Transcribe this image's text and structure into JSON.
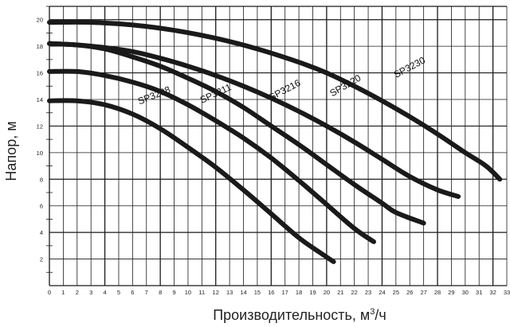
{
  "chart_data": {
    "type": "line",
    "title": "",
    "xlabel_main": "Производительность, м",
    "xlabel_sup": "3",
    "xlabel_tail": "/ч",
    "ylabel": "Напор, м",
    "xlim": [
      0,
      33
    ],
    "ylim": [
      0,
      21
    ],
    "x_ticks": [
      0,
      1,
      2,
      3,
      4,
      5,
      6,
      7,
      8,
      9,
      10,
      11,
      12,
      13,
      14,
      15,
      16,
      17,
      18,
      19,
      20,
      21,
      22,
      23,
      24,
      25,
      26,
      27,
      28,
      29,
      30,
      31,
      32,
      33
    ],
    "y_ticks": [
      2,
      4,
      6,
      8,
      10,
      12,
      14,
      16,
      18,
      20
    ],
    "grid": true,
    "legend": "none",
    "line_color": "#1a1a1a",
    "series": [
      {
        "name": "SP3208",
        "label_at": [
          6.5,
          13.6
        ],
        "label_angle": -22,
        "points": [
          [
            0,
            13.9
          ],
          [
            2,
            13.9
          ],
          [
            4,
            13.6
          ],
          [
            6,
            12.9
          ],
          [
            8,
            11.8
          ],
          [
            10,
            10.4
          ],
          [
            12,
            8.9
          ],
          [
            14,
            7.2
          ],
          [
            16,
            5.4
          ],
          [
            18,
            3.6
          ],
          [
            19.5,
            2.5
          ],
          [
            20.5,
            1.8
          ]
        ]
      },
      {
        "name": "SP3211",
        "label_at": [
          11.0,
          13.7
        ],
        "label_angle": -25,
        "points": [
          [
            0,
            16.1
          ],
          [
            2,
            16.1
          ],
          [
            4,
            15.8
          ],
          [
            6,
            15.3
          ],
          [
            8,
            14.6
          ],
          [
            10,
            13.6
          ],
          [
            12,
            12.4
          ],
          [
            14,
            11.1
          ],
          [
            16,
            9.6
          ],
          [
            18,
            7.9
          ],
          [
            20,
            6.1
          ],
          [
            22,
            4.3
          ],
          [
            23.4,
            3.3
          ]
        ]
      },
      {
        "name": "SP3216",
        "label_at": [
          16.0,
          13.9
        ],
        "label_angle": -28,
        "points": [
          [
            0,
            18.2
          ],
          [
            2,
            18.1
          ],
          [
            4,
            17.8
          ],
          [
            6,
            17.2
          ],
          [
            8,
            16.5
          ],
          [
            10,
            15.6
          ],
          [
            12,
            14.6
          ],
          [
            14,
            13.4
          ],
          [
            16,
            12.0
          ],
          [
            18,
            10.6
          ],
          [
            20,
            9.1
          ],
          [
            22,
            7.6
          ],
          [
            24,
            6.2
          ],
          [
            25,
            5.5
          ],
          [
            27,
            4.7
          ]
        ]
      },
      {
        "name": "SP3220",
        "label_at": [
          20.4,
          14.2
        ],
        "label_angle": -30,
        "points": [
          [
            0,
            18.2
          ],
          [
            2,
            18.1
          ],
          [
            4,
            17.9
          ],
          [
            6,
            17.6
          ],
          [
            8,
            17.1
          ],
          [
            10,
            16.5
          ],
          [
            12,
            15.8
          ],
          [
            14,
            15.0
          ],
          [
            16,
            14.1
          ],
          [
            18,
            13.1
          ],
          [
            20,
            12.0
          ],
          [
            22,
            10.8
          ],
          [
            24,
            9.5
          ],
          [
            26,
            8.2
          ],
          [
            28,
            7.2
          ],
          [
            29.5,
            6.7
          ]
        ]
      },
      {
        "name": "SP3230",
        "label_at": [
          25.0,
          15.6
        ],
        "label_angle": -28,
        "points": [
          [
            0,
            19.8
          ],
          [
            3,
            19.8
          ],
          [
            6,
            19.6
          ],
          [
            9,
            19.2
          ],
          [
            12,
            18.6
          ],
          [
            15,
            17.8
          ],
          [
            18,
            16.8
          ],
          [
            20,
            16.0
          ],
          [
            22,
            15.0
          ],
          [
            24,
            13.9
          ],
          [
            26,
            12.7
          ],
          [
            28,
            11.4
          ],
          [
            30,
            10.0
          ],
          [
            31.5,
            9.0
          ],
          [
            32.5,
            8.0
          ]
        ]
      }
    ]
  }
}
